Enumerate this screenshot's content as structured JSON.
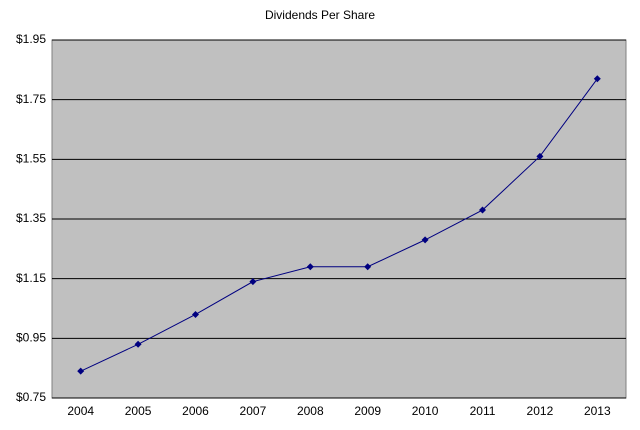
{
  "chart_data": {
    "type": "line",
    "title": "Dividends Per Share",
    "categories": [
      "2004",
      "2005",
      "2006",
      "2007",
      "2008",
      "2009",
      "2010",
      "2011",
      "2012",
      "2013"
    ],
    "values": [
      0.84,
      0.93,
      1.03,
      1.14,
      1.19,
      1.19,
      1.28,
      1.38,
      1.56,
      1.82
    ],
    "color": "#000080",
    "ylim": [
      0.75,
      1.95
    ],
    "yticks": [
      {
        "value": 0.75,
        "label": "$0.75"
      },
      {
        "value": 0.95,
        "label": "$0.95"
      },
      {
        "value": 1.15,
        "label": "$1.15"
      },
      {
        "value": 1.35,
        "label": "$1.35"
      },
      {
        "value": 1.55,
        "label": "$1.55"
      },
      {
        "value": 1.75,
        "label": "$1.75"
      },
      {
        "value": 1.95,
        "label": "$1.95"
      }
    ],
    "grid": true
  }
}
